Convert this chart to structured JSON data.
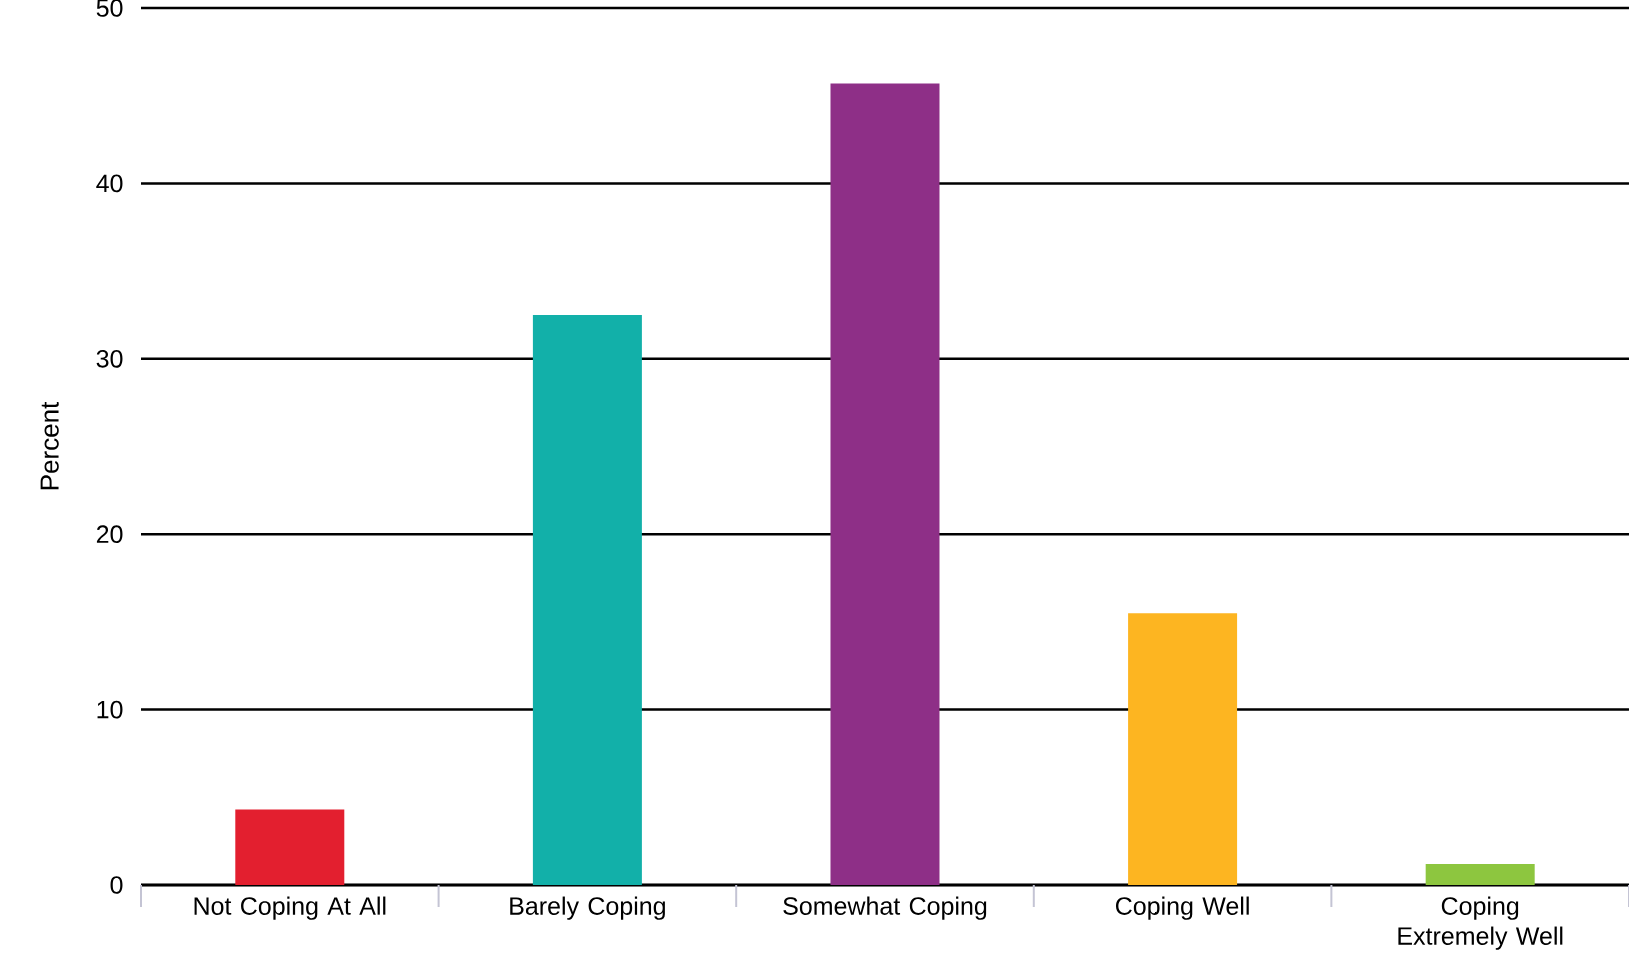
{
  "chart_data": {
    "type": "bar",
    "ylabel": "Percent",
    "categories": [
      "Not Coping At All",
      "Barely Coping",
      "Somewhat Coping",
      "Coping Well",
      "Coping Extremely Well"
    ],
    "values": [
      4.3,
      32.5,
      45.7,
      15.5,
      1.2
    ],
    "colors": [
      "#e31f2f",
      "#12b0a9",
      "#8e2f87",
      "#fdb521",
      "#8dc63f"
    ],
    "ylim": [
      0,
      50
    ],
    "yticks": [
      0,
      10,
      20,
      30,
      40,
      50
    ],
    "grid": "y"
  }
}
